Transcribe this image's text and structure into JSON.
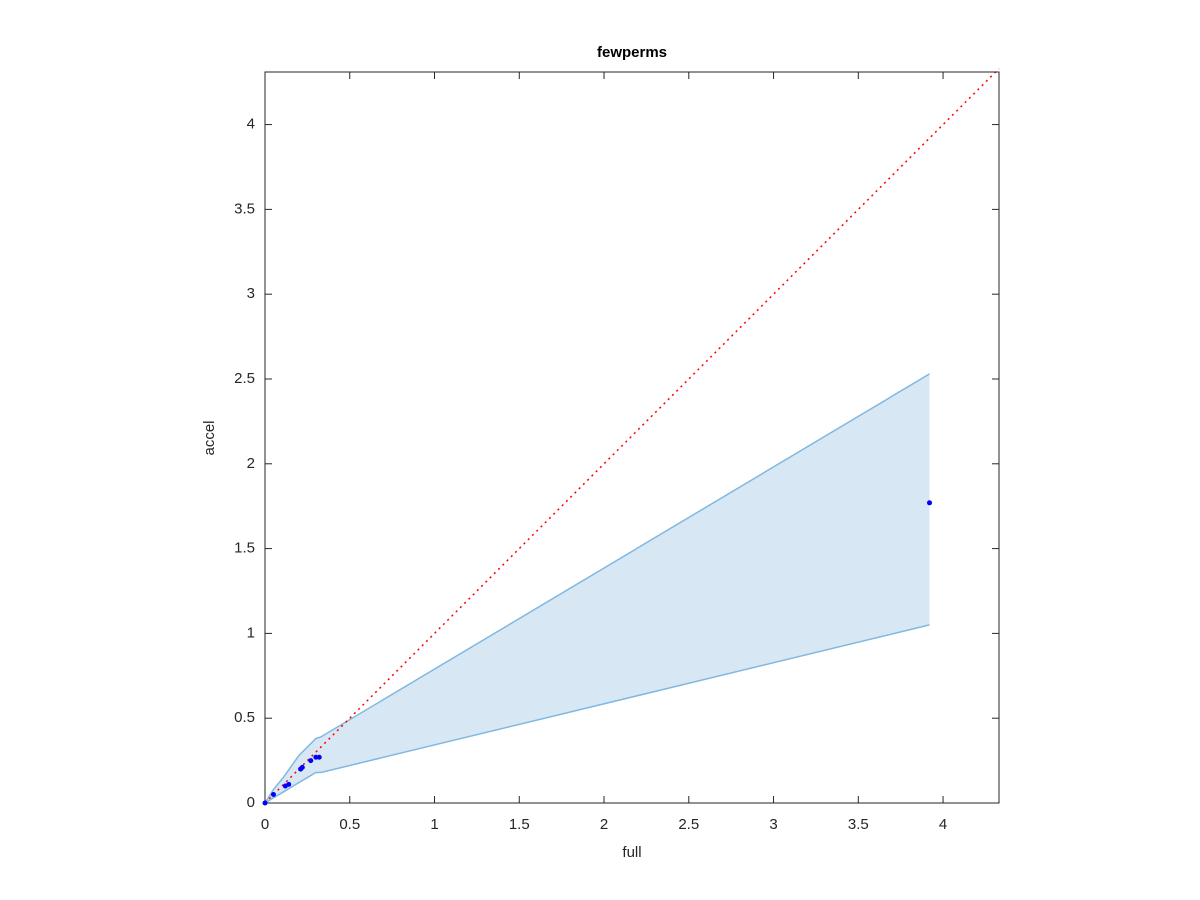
{
  "chart_data": {
    "type": "scatter",
    "title": "fewperms",
    "x_label": "full",
    "y_label": "accel",
    "xlim": [
      0,
      4.33
    ],
    "ylim": [
      0,
      4.31
    ],
    "xticks": [
      0,
      0.5,
      1,
      1.5,
      2,
      2.5,
      3,
      3.5,
      4
    ],
    "yticks": [
      0,
      0.5,
      1,
      1.5,
      2,
      2.5,
      3,
      3.5,
      4
    ],
    "series": [
      {
        "color": "#0000ff",
        "x": [
          0,
          0.05,
          0.12,
          0.14,
          0.21,
          0.22,
          0.27,
          0.3,
          0.32,
          3.92
        ],
        "values": [
          0,
          0.05,
          0.1,
          0.11,
          0.2,
          0.21,
          0.25,
          0.27,
          0.27,
          1.77
        ]
      }
    ],
    "band": {
      "color": "#80b8e0",
      "fill": "#d8e7f4",
      "x": [
        0,
        0.05,
        0.1,
        0.15,
        0.2,
        0.25,
        0.3,
        0.33,
        3.92
      ],
      "upper": [
        0,
        0.08,
        0.14,
        0.21,
        0.28,
        0.33,
        0.38,
        0.39,
        2.53
      ],
      "lower": [
        0,
        0.03,
        0.06,
        0.09,
        0.12,
        0.15,
        0.18,
        0.18,
        1.05
      ]
    },
    "reference_line": {
      "color": "#ff0000",
      "x": [
        0,
        4.33
      ],
      "values": [
        0,
        4.33
      ]
    }
  }
}
